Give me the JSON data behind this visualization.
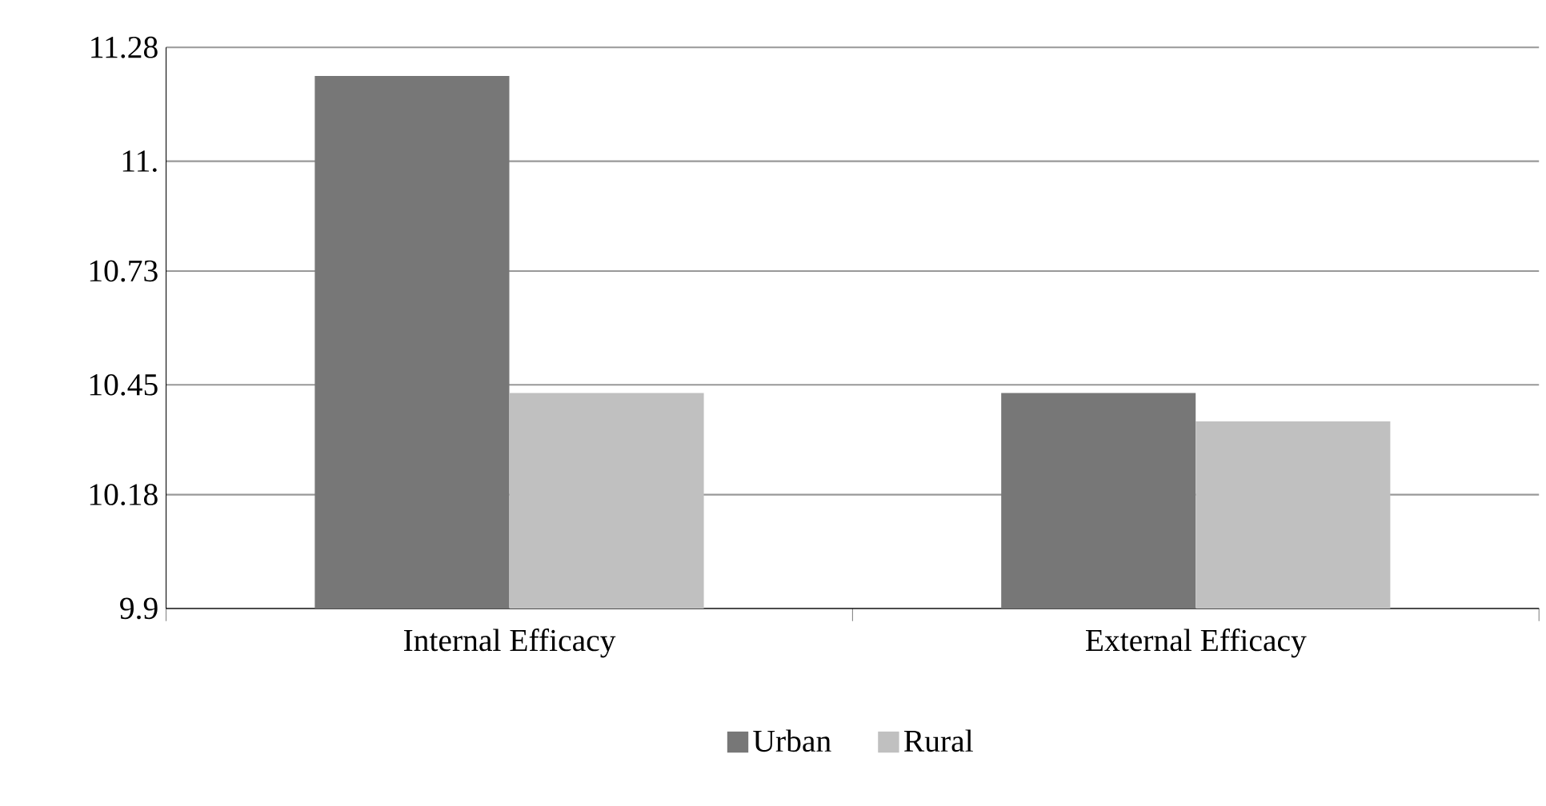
{
  "chart_data": {
    "type": "bar",
    "categories": [
      "Internal Efficacy",
      "External Efficacy"
    ],
    "series": [
      {
        "name": "Urban",
        "color": "#777777",
        "values": [
          11.21,
          10.43
        ]
      },
      {
        "name": "Rural",
        "color": "#c0c0c0",
        "values": [
          10.43,
          10.36
        ]
      }
    ],
    "ylim": [
      9.9,
      11.28
    ],
    "yticks": [
      9.9,
      10.18,
      10.45,
      10.73,
      {
        "value": 11.0,
        "label": "11."
      },
      11.28
    ],
    "grid": "y",
    "legend": "bottom"
  }
}
